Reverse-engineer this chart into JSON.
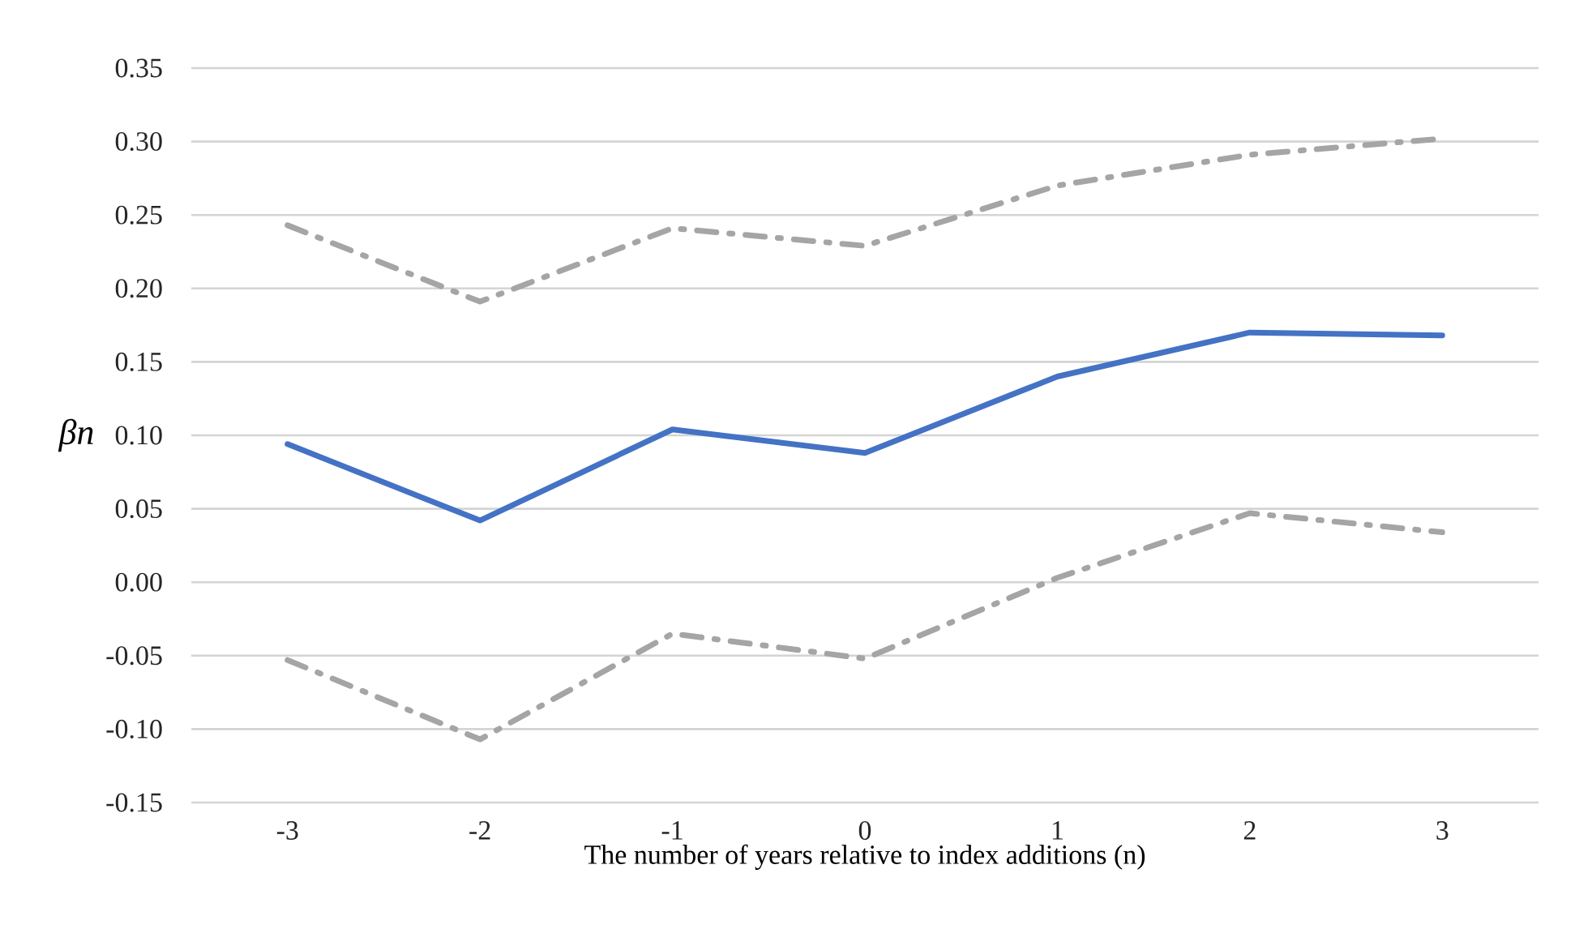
{
  "chart_data": {
    "type": "line",
    "xlabel": "The number of years relative to index additions (n)",
    "ylabel": "βn",
    "categories": [
      "-3",
      "-2",
      "-1",
      "0",
      "1",
      "2",
      "3"
    ],
    "series": [
      {
        "color": "#4472c4",
        "values": [
          0.094,
          0.042,
          0.104,
          0.088,
          0.14,
          0.17,
          0.168
        ],
        "line_style": "solid"
      },
      {
        "color": "#a5a5a5",
        "values": [
          0.243,
          0.191,
          0.241,
          0.229,
          0.27,
          0.291,
          0.302
        ],
        "line_style": "dashed"
      },
      {
        "color": "#a5a5a5",
        "values": [
          -0.053,
          -0.107,
          -0.035,
          -0.052,
          0.003,
          0.047,
          0.034
        ],
        "line_style": "dashed"
      }
    ],
    "ylim": [
      -0.15,
      0.35
    ],
    "yticks": [
      {
        "value": -0.15,
        "label": "-0.15"
      },
      {
        "value": -0.1,
        "label": "-0.10"
      },
      {
        "value": -0.05,
        "label": "-0.05"
      },
      {
        "value": 0,
        "label": "0.00"
      },
      {
        "value": 0.05,
        "label": "0.05"
      },
      {
        "value": 0.1,
        "label": "0.10"
      },
      {
        "value": 0.15,
        "label": "0.15"
      },
      {
        "value": 0.2,
        "label": "0.20"
      },
      {
        "value": 0.25,
        "label": "0.25"
      },
      {
        "value": 0.3,
        "label": "0.30"
      },
      {
        "value": 0.35,
        "label": "0.35"
      }
    ],
    "grid": "y",
    "marker": "none"
  }
}
